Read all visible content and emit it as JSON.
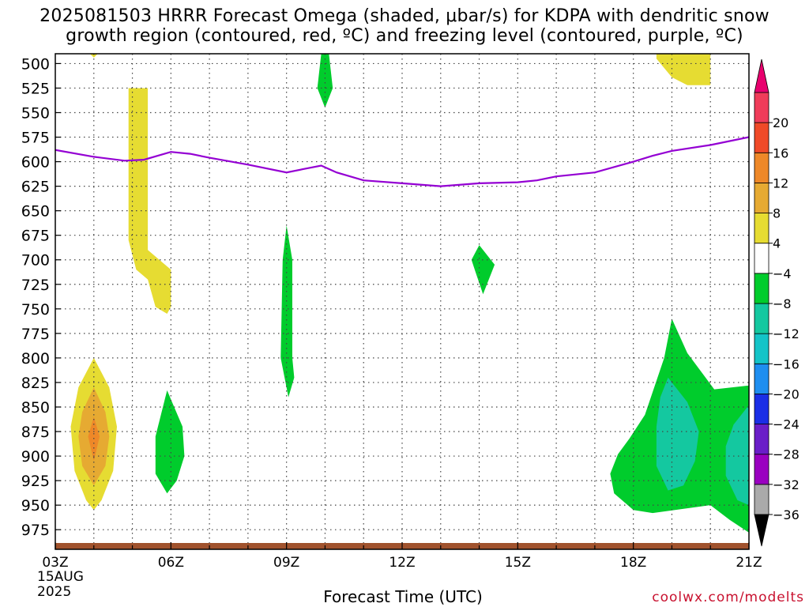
{
  "title": {
    "line1": "2025081503 HRRR Forecast Omega (shaded, μbar/s) for KDPA with dendritic snow",
    "line2": "growth region (contoured, red, ºC) and freezing level (contoured, purple, ºC)"
  },
  "credit": "coolwx.com/modelts",
  "date_label": {
    "day": "15AUG",
    "year": "2025"
  },
  "chart_data": {
    "type": "heatmap",
    "title": "2025081503 HRRR Forecast Omega (shaded, μbar/s) for KDPA with dendritic snow growth region (contoured, red, ºC) and freezing level (contoured, purple, ºC)",
    "xlabel": "Forecast Time (UTC)",
    "ylabel": "",
    "x_range": [
      3,
      21
    ],
    "x_ticks": [
      3,
      6,
      9,
      12,
      15,
      18,
      21
    ],
    "x_tick_labels": [
      "03Z",
      "06Z",
      "09Z",
      "12Z",
      "15Z",
      "18Z",
      "21Z"
    ],
    "y_range": [
      490,
      995
    ],
    "y_ticks": [
      500,
      525,
      550,
      575,
      600,
      625,
      650,
      675,
      700,
      725,
      750,
      775,
      800,
      825,
      850,
      875,
      900,
      925,
      950,
      975
    ],
    "grid": true,
    "colorbar": {
      "levels": [
        -36,
        -32,
        -28,
        -24,
        -20,
        -16,
        -12,
        -8,
        -4,
        4,
        8,
        12,
        16,
        20
      ],
      "colors": [
        "#aaaaaa",
        "#9a00c0",
        "#6a1ec8",
        "#1a2ee6",
        "#1e8ef0",
        "#14c4c8",
        "#14c8a0",
        "#00cc2c",
        "#ffffff",
        "#e6dc32",
        "#e6aa32",
        "#ee8828",
        "#f04a28",
        "#f03c5a"
      ],
      "under_color": "#000000",
      "over_color": "#e8006e"
    },
    "freezing_level": {
      "color": "#9400d3",
      "x": [
        3,
        4,
        4.8,
        5.3,
        6,
        6.5,
        7,
        8,
        9,
        9.5,
        9.9,
        10.3,
        11,
        12,
        13,
        14,
        15,
        15.5,
        16,
        17,
        18,
        18.5,
        19,
        20,
        21
      ],
      "y": [
        588,
        595,
        599,
        598,
        590,
        592,
        596,
        603,
        611,
        607,
        604,
        611,
        619,
        622,
        625,
        622,
        621,
        619,
        615,
        611,
        600,
        594,
        589,
        583,
        575
      ]
    },
    "omega_regions": [
      {
        "value_range": [
          4,
          8
        ],
        "points": [
          [
            4.0,
            494
          ],
          [
            4.1,
            490
          ],
          [
            3.9,
            490
          ]
        ]
      },
      {
        "value_range": [
          4,
          8
        ],
        "points": [
          [
            4.9,
            525
          ],
          [
            5.4,
            525
          ],
          [
            5.4,
            690
          ],
          [
            5.7,
            700
          ],
          [
            6.0,
            710
          ],
          [
            6.0,
            748
          ],
          [
            5.9,
            755
          ],
          [
            5.6,
            748
          ],
          [
            5.4,
            720
          ],
          [
            5.1,
            710
          ],
          [
            4.9,
            680
          ]
        ]
      },
      {
        "value_range": [
          4,
          8
        ],
        "points": [
          [
            4.0,
            800
          ],
          [
            4.4,
            830
          ],
          [
            4.6,
            870
          ],
          [
            4.5,
            915
          ],
          [
            4.2,
            945
          ],
          [
            4.0,
            955
          ],
          [
            3.8,
            945
          ],
          [
            3.5,
            915
          ],
          [
            3.4,
            870
          ],
          [
            3.6,
            830
          ]
        ]
      },
      {
        "value_range": [
          8,
          12
        ],
        "points": [
          [
            4.0,
            830
          ],
          [
            4.3,
            855
          ],
          [
            4.4,
            880
          ],
          [
            4.3,
            910
          ],
          [
            4.0,
            930
          ],
          [
            3.7,
            910
          ],
          [
            3.6,
            880
          ],
          [
            3.7,
            855
          ]
        ]
      },
      {
        "value_range": [
          12,
          16
        ],
        "points": [
          [
            4.0,
            860
          ],
          [
            4.15,
            880
          ],
          [
            4.0,
            905
          ],
          [
            3.85,
            880
          ]
        ]
      },
      {
        "value_range": [
          4,
          8
        ],
        "points": [
          [
            18.6,
            490
          ],
          [
            20.0,
            490
          ],
          [
            20.0,
            522
          ],
          [
            19.4,
            522
          ],
          [
            19.0,
            514
          ],
          [
            18.6,
            495
          ]
        ]
      },
      {
        "value_range": [
          -8,
          -4
        ],
        "points": [
          [
            9.9,
            490
          ],
          [
            10.1,
            490
          ],
          [
            10.2,
            525
          ],
          [
            10.0,
            545
          ],
          [
            9.8,
            525
          ]
        ]
      },
      {
        "value_range": [
          -8,
          -4
        ],
        "points": [
          [
            9.0,
            665
          ],
          [
            9.15,
            700
          ],
          [
            9.15,
            800
          ],
          [
            9.2,
            820
          ],
          [
            9.05,
            840
          ],
          [
            8.85,
            800
          ],
          [
            8.9,
            700
          ]
        ]
      },
      {
        "value_range": [
          -8,
          -4
        ],
        "points": [
          [
            14.0,
            685
          ],
          [
            14.4,
            705
          ],
          [
            14.1,
            735
          ],
          [
            13.9,
            712
          ],
          [
            13.8,
            700
          ]
        ]
      },
      {
        "value_range": [
          -8,
          -4
        ],
        "points": [
          [
            5.9,
            833
          ],
          [
            6.3,
            870
          ],
          [
            6.35,
            900
          ],
          [
            6.15,
            925
          ],
          [
            5.9,
            938
          ],
          [
            5.6,
            918
          ],
          [
            5.6,
            880
          ]
        ]
      },
      {
        "value_range": [
          -8,
          -4
        ],
        "points": [
          [
            19.0,
            760
          ],
          [
            19.4,
            795
          ],
          [
            20.1,
            832
          ],
          [
            21.0,
            828
          ],
          [
            21.0,
            978
          ],
          [
            20.5,
            965
          ],
          [
            20.0,
            950
          ],
          [
            18.5,
            958
          ],
          [
            18.0,
            955
          ],
          [
            17.5,
            938
          ],
          [
            17.4,
            918
          ],
          [
            17.6,
            898
          ],
          [
            17.9,
            882
          ],
          [
            18.3,
            858
          ],
          [
            18.8,
            800
          ]
        ]
      },
      {
        "value_range": [
          -12,
          -8
        ],
        "points": [
          [
            18.9,
            820
          ],
          [
            19.4,
            845
          ],
          [
            19.7,
            875
          ],
          [
            19.6,
            905
          ],
          [
            19.3,
            930
          ],
          [
            18.9,
            935
          ],
          [
            18.6,
            910
          ],
          [
            18.6,
            870
          ],
          [
            18.7,
            840
          ]
        ]
      },
      {
        "value_range": [
          -12,
          -8
        ],
        "points": [
          [
            21.0,
            848
          ],
          [
            20.6,
            868
          ],
          [
            20.4,
            890
          ],
          [
            20.4,
            920
          ],
          [
            20.7,
            945
          ],
          [
            21.0,
            950
          ]
        ]
      }
    ]
  }
}
